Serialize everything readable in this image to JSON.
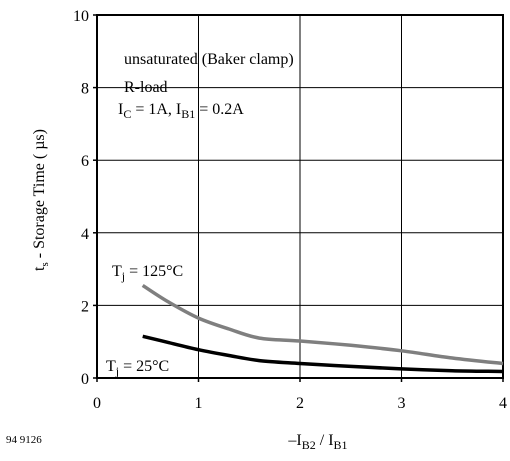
{
  "chart_data": {
    "type": "line",
    "ylabel_main": "t",
    "ylabel_sub": "s",
    "ylabel_rest": " - Storage Time ( µs)",
    "xlabel_pre": "–I",
    "xlabel_sub1": "B2",
    "xlabel_mid": " / I",
    "xlabel_sub2": "B1",
    "xlim": [
      0,
      4
    ],
    "ylim": [
      0,
      10
    ],
    "x_ticks": [
      "0",
      "1",
      "2",
      "3",
      "4"
    ],
    "y_ticks": [
      "0",
      "2",
      "4",
      "6",
      "8",
      "10"
    ],
    "grid": true,
    "figure_id": "94 9126",
    "annotations": {
      "line1": "unsaturated (Baker clamp)",
      "line2": "R-load",
      "line3": {
        "a": "I",
        "a_sub": "C",
        "b": " = 1A, I",
        "b_sub": "B1",
        "c": " = 0.2A"
      }
    },
    "series": [
      {
        "name": "Tj = 125°C",
        "label": {
          "main": "T",
          "sub": "j",
          "rest": " = 125°C"
        },
        "color": "#7f7f7f",
        "x": [
          0.45,
          0.7,
          1.0,
          1.3,
          1.6,
          2.0,
          2.5,
          3.0,
          3.5,
          4.0
        ],
        "y": [
          2.55,
          2.1,
          1.65,
          1.35,
          1.1,
          1.02,
          0.9,
          0.75,
          0.55,
          0.4
        ]
      },
      {
        "name": "Tj = 25°C",
        "label": {
          "main": "T",
          "sub": "j",
          "rest": " = 25°C"
        },
        "color": "#000000",
        "x": [
          0.45,
          0.7,
          1.0,
          1.3,
          1.6,
          2.0,
          2.5,
          3.0,
          3.5,
          4.0
        ],
        "y": [
          1.15,
          0.98,
          0.78,
          0.62,
          0.48,
          0.4,
          0.32,
          0.25,
          0.2,
          0.18
        ]
      }
    ]
  }
}
